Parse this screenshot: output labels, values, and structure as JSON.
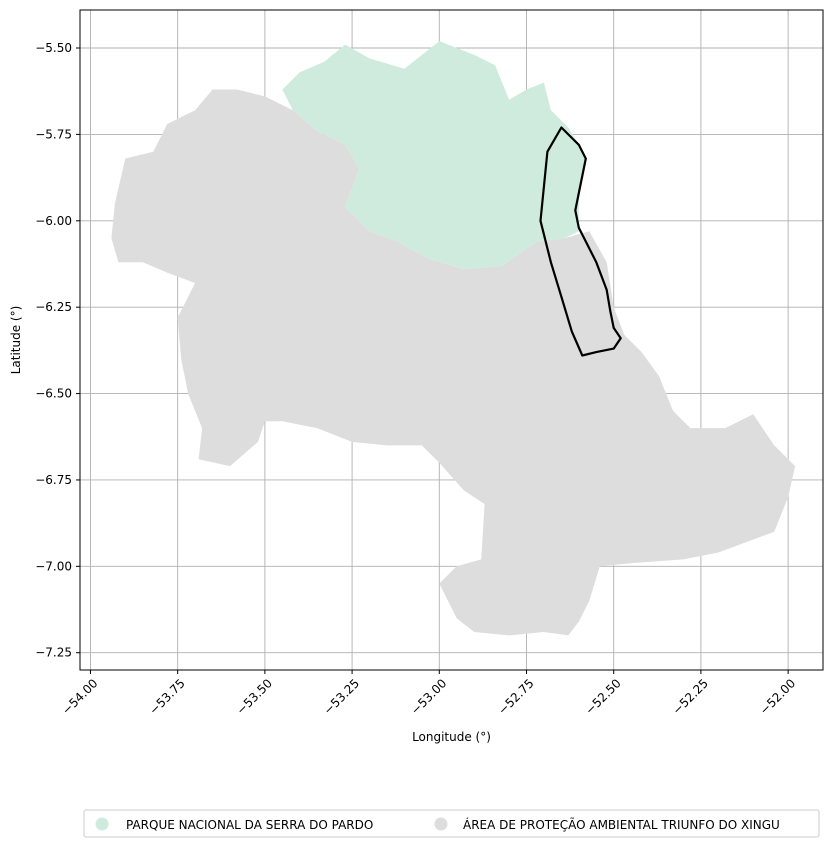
{
  "map": {
    "xlabel": "Longitude (°)",
    "ylabel": "Latitude (°)",
    "xlim": [
      -54.03,
      -51.9
    ],
    "ylim": [
      -7.3,
      -5.39
    ],
    "grid": true,
    "x_ticks": [
      -54.0,
      -53.75,
      -53.5,
      -53.25,
      -53.0,
      -52.75,
      -52.5,
      -52.25,
      -52.0
    ],
    "x_tick_labels": [
      "−54.00",
      "−53.75",
      "−53.50",
      "−53.25",
      "−53.00",
      "−52.75",
      "−52.50",
      "−52.25",
      "−52.00"
    ],
    "y_ticks": [
      -5.5,
      -5.75,
      -6.0,
      -6.25,
      -6.5,
      -6.75,
      -7.0,
      -7.25
    ],
    "y_tick_labels": [
      "−5.50",
      "−5.75",
      "−6.00",
      "−6.25",
      "−6.50",
      "−6.75",
      "−7.00",
      "−7.25"
    ],
    "colors": {
      "parque": "#cfebde",
      "apa": "#dddddd",
      "outline": "#000000",
      "grid": "#b0b0b0"
    },
    "legend_placement": "bottom-center",
    "legend": [
      {
        "label": "PARQUE NACIONAL DA SERRA DO PARDO",
        "color": "#cfebde"
      },
      {
        "label": "ÁREA DE PROTEÇÃO AMBIENTAL TRIUNFO DO XINGU",
        "color": "#dddddd"
      }
    ],
    "regions": {
      "apa": [
        [
          -53.58,
          -5.62
        ],
        [
          -53.5,
          -5.64
        ],
        [
          -53.42,
          -5.68
        ],
        [
          -53.35,
          -5.74
        ],
        [
          -53.27,
          -5.78
        ],
        [
          -53.23,
          -5.85
        ],
        [
          -53.27,
          -5.96
        ],
        [
          -53.2,
          -6.03
        ],
        [
          -53.12,
          -6.06
        ],
        [
          -53.03,
          -6.11
        ],
        [
          -52.93,
          -6.14
        ],
        [
          -52.82,
          -6.13
        ],
        [
          -52.72,
          -6.06
        ],
        [
          -52.64,
          -6.05
        ],
        [
          -52.57,
          -6.03
        ],
        [
          -52.52,
          -6.12
        ],
        [
          -52.5,
          -6.25
        ],
        [
          -52.47,
          -6.33
        ],
        [
          -52.42,
          -6.38
        ],
        [
          -52.37,
          -6.45
        ],
        [
          -52.33,
          -6.55
        ],
        [
          -52.28,
          -6.6
        ],
        [
          -52.18,
          -6.6
        ],
        [
          -52.1,
          -6.56
        ],
        [
          -52.04,
          -6.65
        ],
        [
          -51.98,
          -6.71
        ],
        [
          -52.0,
          -6.8
        ],
        [
          -52.04,
          -6.9
        ],
        [
          -52.12,
          -6.93
        ],
        [
          -52.2,
          -6.96
        ],
        [
          -52.3,
          -6.98
        ],
        [
          -52.44,
          -6.99
        ],
        [
          -52.54,
          -7.0
        ],
        [
          -52.57,
          -7.1
        ],
        [
          -52.6,
          -7.16
        ],
        [
          -52.63,
          -7.2
        ],
        [
          -52.7,
          -7.19
        ],
        [
          -52.8,
          -7.2
        ],
        [
          -52.9,
          -7.19
        ],
        [
          -52.95,
          -7.15
        ],
        [
          -53.0,
          -7.05
        ],
        [
          -52.95,
          -7.0
        ],
        [
          -52.88,
          -6.98
        ],
        [
          -52.87,
          -6.82
        ],
        [
          -52.93,
          -6.78
        ],
        [
          -53.0,
          -6.7
        ],
        [
          -53.05,
          -6.65
        ],
        [
          -53.15,
          -6.65
        ],
        [
          -53.25,
          -6.64
        ],
        [
          -53.35,
          -6.6
        ],
        [
          -53.45,
          -6.58
        ],
        [
          -53.5,
          -6.58
        ],
        [
          -53.52,
          -6.64
        ],
        [
          -53.6,
          -6.71
        ],
        [
          -53.69,
          -6.69
        ],
        [
          -53.68,
          -6.6
        ],
        [
          -53.72,
          -6.5
        ],
        [
          -53.74,
          -6.4
        ],
        [
          -53.75,
          -6.28
        ],
        [
          -53.7,
          -6.18
        ],
        [
          -53.78,
          -6.15
        ],
        [
          -53.85,
          -6.12
        ],
        [
          -53.92,
          -6.12
        ],
        [
          -53.94,
          -6.05
        ],
        [
          -53.93,
          -5.95
        ],
        [
          -53.9,
          -5.82
        ],
        [
          -53.82,
          -5.8
        ],
        [
          -53.78,
          -5.72
        ],
        [
          -53.7,
          -5.68
        ],
        [
          -53.65,
          -5.62
        ]
      ],
      "parque": [
        [
          -53.27,
          -5.49
        ],
        [
          -53.2,
          -5.53
        ],
        [
          -53.1,
          -5.56
        ],
        [
          -53.0,
          -5.48
        ],
        [
          -52.9,
          -5.52
        ],
        [
          -52.84,
          -5.55
        ],
        [
          -52.8,
          -5.65
        ],
        [
          -52.75,
          -5.62
        ],
        [
          -52.7,
          -5.6
        ],
        [
          -52.68,
          -5.68
        ],
        [
          -52.63,
          -5.73
        ],
        [
          -52.6,
          -5.78
        ],
        [
          -52.58,
          -5.82
        ],
        [
          -52.6,
          -5.91
        ],
        [
          -52.6,
          -6.03
        ],
        [
          -52.64,
          -6.05
        ],
        [
          -52.72,
          -6.06
        ],
        [
          -52.82,
          -6.13
        ],
        [
          -52.93,
          -6.14
        ],
        [
          -53.03,
          -6.11
        ],
        [
          -53.12,
          -6.06
        ],
        [
          -53.2,
          -6.03
        ],
        [
          -53.27,
          -5.96
        ],
        [
          -53.23,
          -5.85
        ],
        [
          -53.27,
          -5.78
        ],
        [
          -53.35,
          -5.74
        ],
        [
          -53.42,
          -5.68
        ],
        [
          -53.45,
          -5.62
        ],
        [
          -53.4,
          -5.57
        ],
        [
          -53.33,
          -5.54
        ]
      ],
      "outline": [
        [
          -52.65,
          -5.73
        ],
        [
          -52.62,
          -5.76
        ],
        [
          -52.6,
          -5.78
        ],
        [
          -52.58,
          -5.82
        ],
        [
          -52.59,
          -5.87
        ],
        [
          -52.6,
          -5.92
        ],
        [
          -52.61,
          -5.97
        ],
        [
          -52.6,
          -6.02
        ],
        [
          -52.58,
          -6.06
        ],
        [
          -52.55,
          -6.12
        ],
        [
          -52.52,
          -6.2
        ],
        [
          -52.51,
          -6.26
        ],
        [
          -52.5,
          -6.31
        ],
        [
          -52.48,
          -6.34
        ],
        [
          -52.5,
          -6.37
        ],
        [
          -52.55,
          -6.38
        ],
        [
          -52.59,
          -6.39
        ],
        [
          -52.62,
          -6.32
        ],
        [
          -52.65,
          -6.22
        ],
        [
          -52.68,
          -6.12
        ],
        [
          -52.71,
          -6.0
        ],
        [
          -52.69,
          -5.8
        ]
      ]
    }
  }
}
